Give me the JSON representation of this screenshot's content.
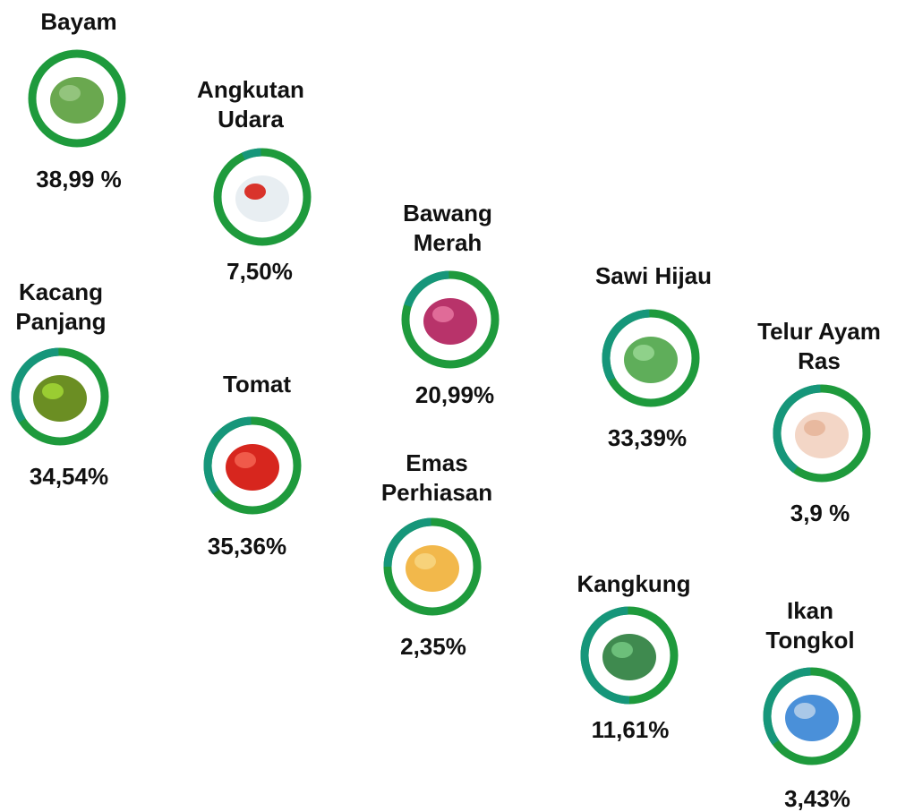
{
  "items": [
    {
      "label": "Bayam",
      "value": "38,99 %"
    },
    {
      "label": "Angkutan Udara",
      "value": "7,50%"
    },
    {
      "label": "Bawang Merah",
      "value": "20,99%"
    },
    {
      "label": "Sawi Hijau",
      "value": "33,39%"
    },
    {
      "label": "Telur Ayam Ras",
      "value": "3,9 %"
    },
    {
      "label": "Kacang Panjang",
      "value": "34,54%"
    },
    {
      "label": "Tomat",
      "value": "35,36%"
    },
    {
      "label": "Emas Perhiasan",
      "value": "2,35%"
    },
    {
      "label": "Kangkung",
      "value": "11,61%"
    },
    {
      "label": "Ikan Tongkol",
      "value": "3,43%"
    }
  ]
}
